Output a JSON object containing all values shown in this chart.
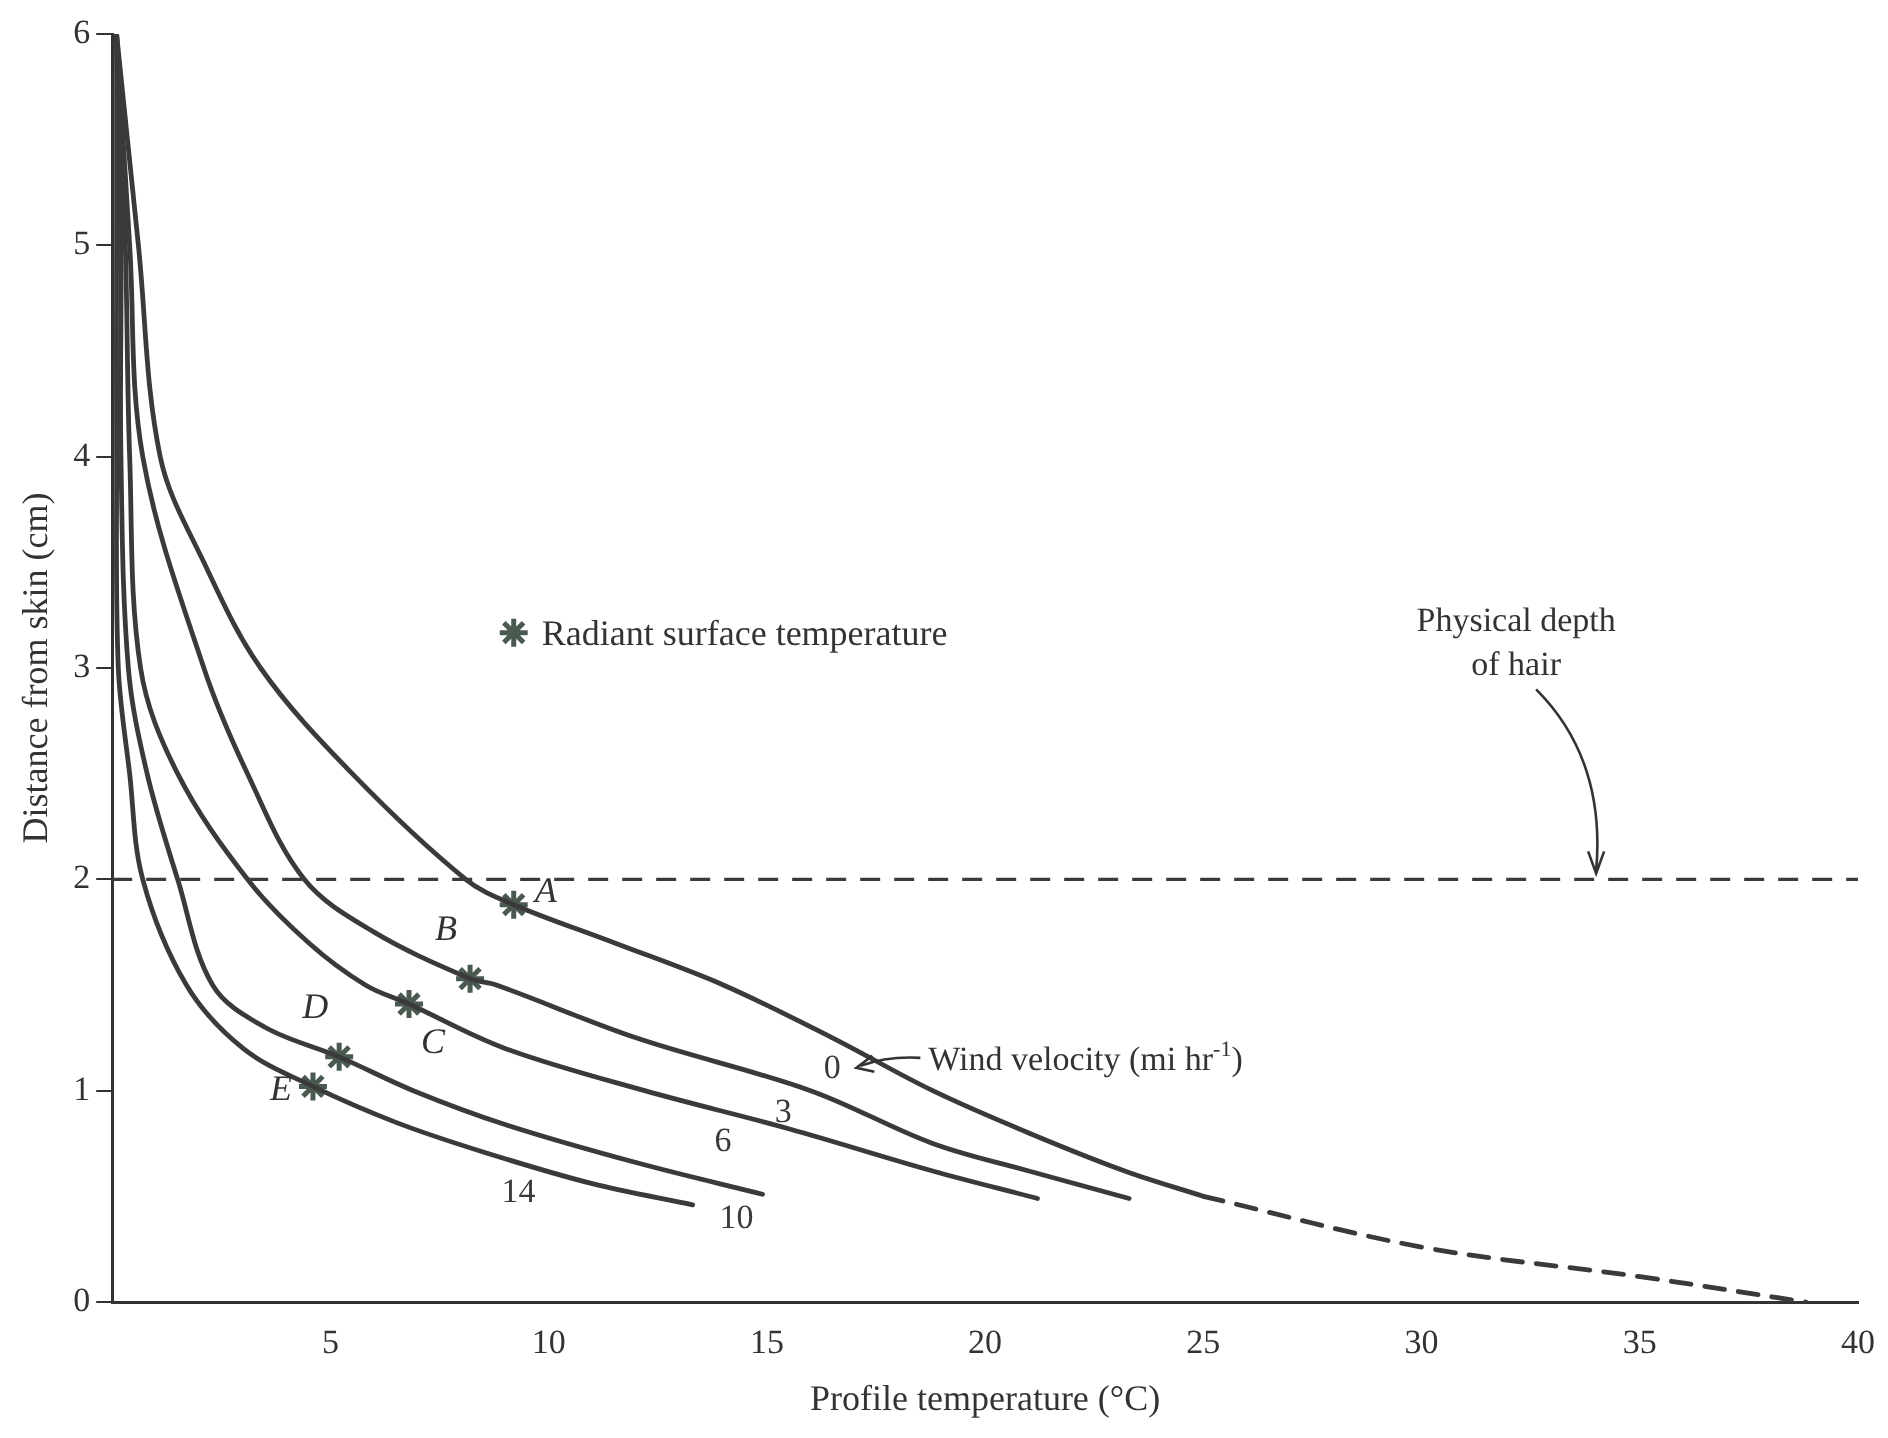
{
  "chart_data": {
    "type": "line",
    "xlabel": "Profile temperature (°C)",
    "ylabel": "Distance from skin (cm)",
    "xlim": [
      0,
      40
    ],
    "ylim": [
      0,
      6
    ],
    "xticks": [
      5,
      10,
      15,
      20,
      25,
      30,
      35,
      40
    ],
    "yticks": [
      0,
      1,
      2,
      3,
      4,
      5,
      6
    ],
    "grid": false,
    "legend": "center left",
    "line_style": "solid",
    "marker": "none",
    "series": [
      {
        "name": "0",
        "color": "#3a3a3a",
        "x": [
          0.1,
          0.6,
          1.1,
          2.1,
          3.4,
          5.5,
          8.1,
          9.2,
          11.5,
          14.0,
          16.5,
          18.8,
          21.0,
          23.2,
          25.0
        ],
        "values": [
          6,
          5,
          4,
          3.5,
          3,
          2.5,
          2,
          1.88,
          1.7,
          1.5,
          1.25,
          1.0,
          0.8,
          0.62,
          0.5
        ]
      },
      {
        "color": "#3a3a3a",
        "type": "line",
        "line_style": "dashed",
        "x": [
          25.0,
          30.0,
          35.0,
          38.8
        ],
        "values": [
          0.5,
          0.26,
          0.12,
          0
        ]
      },
      {
        "name": "3",
        "color": "#3a3a3a",
        "x": [
          0.1,
          0.4,
          0.7,
          2.1,
          3.1,
          4.4,
          6.0,
          8.2,
          8.8,
          12.0,
          16.0,
          18.8,
          21.0,
          23.3
        ],
        "values": [
          6,
          5,
          4,
          3,
          2.5,
          2,
          1.75,
          1.53,
          1.5,
          1.25,
          1.0,
          0.75,
          0.62,
          0.49
        ]
      },
      {
        "name": "6",
        "color": "#3a3a3a",
        "x": [
          0.1,
          0.3,
          0.4,
          0.65,
          1.5,
          3.1,
          4.5,
          5.8,
          6.8,
          9.0,
          12.2,
          15.5,
          18.8,
          21.2
        ],
        "values": [
          6,
          5,
          4,
          3,
          2.5,
          2,
          1.7,
          1.5,
          1.41,
          1.2,
          1.0,
          0.82,
          0.62,
          0.49
        ]
      },
      {
        "name": "10",
        "color": "#3a3a3a",
        "x": [
          0.1,
          0.2,
          0.2,
          0.37,
          0.8,
          1.5,
          2.3,
          3.5,
          5.2,
          6.9,
          9.0,
          12.0,
          14.9
        ],
        "values": [
          6,
          5,
          4,
          3,
          2.5,
          2,
          1.5,
          1.3,
          1.16,
          1.0,
          0.84,
          0.66,
          0.51
        ]
      },
      {
        "name": "14",
        "color": "#3a3a3a",
        "x": [
          0.1,
          0.1,
          0.1,
          0.14,
          0.4,
          0.7,
          1.7,
          3.0,
          4.6,
          6.5,
          8.5,
          11.0,
          13.3
        ],
        "values": [
          6,
          5,
          4,
          3,
          2.5,
          2,
          1.5,
          1.2,
          1.02,
          0.85,
          0.71,
          0.56,
          0.46
        ]
      },
      {
        "name": "Radiant surface temperature",
        "type": "scatter",
        "marker": "cross",
        "color": "#4a5a50",
        "x": [
          9.2,
          8.2,
          6.8,
          5.2,
          4.6
        ],
        "values": [
          1.88,
          1.53,
          1.41,
          1.16,
          1.02
        ]
      }
    ],
    "ref_lines": [
      {
        "axis": "y",
        "value": 2,
        "line_style": "dashed",
        "color": "#3a3a3a"
      }
    ],
    "annotations": [
      {
        "text": "A",
        "x": 9.2,
        "y": 1.88
      },
      {
        "text": "B",
        "x": 8.2,
        "y": 1.53
      },
      {
        "text": "C",
        "x": 6.8,
        "y": 1.41
      },
      {
        "text": "D",
        "x": 5.2,
        "y": 1.16
      },
      {
        "text": "E",
        "x": 4.6,
        "y": 1.02
      },
      "Wind velocity (mi hr$^{-1}$)",
      {
        "text": "Physical depth of hair",
        "x": 34,
        "y": 2
      }
    ]
  }
}
